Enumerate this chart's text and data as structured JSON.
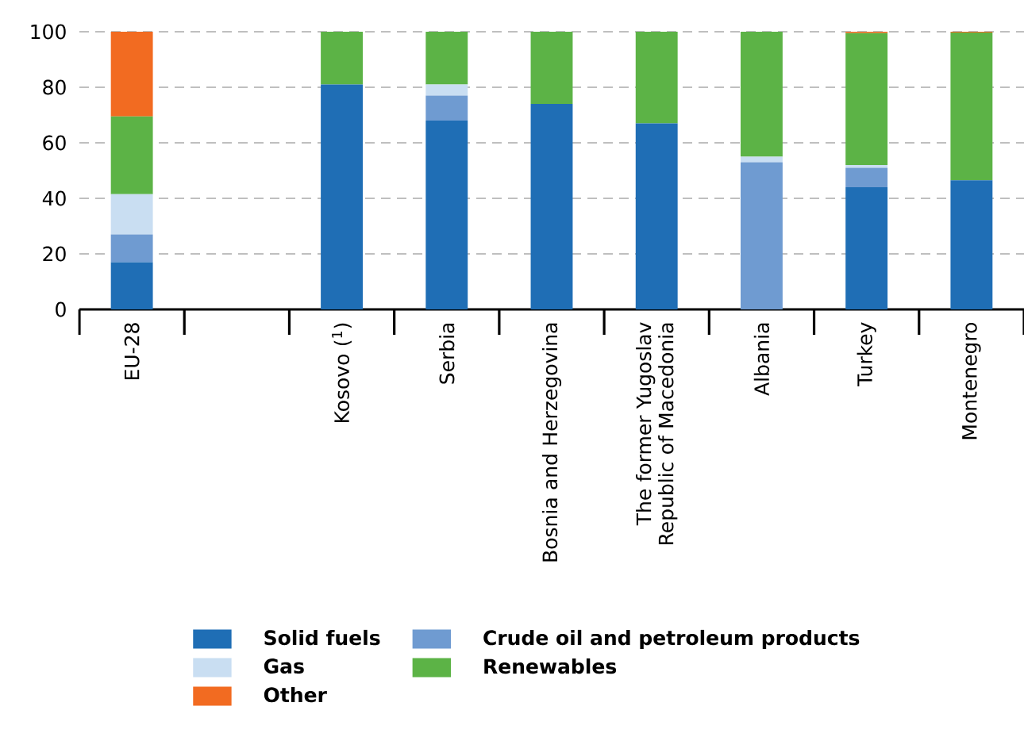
{
  "chart_data": {
    "type": "bar",
    "stacked": true,
    "categories": [
      "EU-28",
      null,
      "Kosovo ($^{1}$)",
      "Serbia",
      "Bosnia and Herzegovina",
      "The former Yugoslav Republic of Macedonia",
      "Albania",
      "Turkey",
      "Montenegro"
    ],
    "series": [
      {
        "name": "Solid fuels",
        "color": "#1f6eb5",
        "values": [
          17,
          null,
          81,
          68,
          74,
          67,
          0,
          44,
          46.5
        ]
      },
      {
        "name": "Crude oil and petroleum products",
        "color": "#6f9bd1",
        "values": [
          10,
          null,
          0,
          9,
          0,
          0,
          53,
          7,
          0
        ]
      },
      {
        "name": "Gas",
        "color": "#c9def2",
        "values": [
          14.5,
          null,
          0,
          4,
          0,
          0,
          2,
          1,
          0
        ]
      },
      {
        "name": "Renewables",
        "color": "#5cb346",
        "values": [
          28,
          null,
          19,
          19,
          26,
          33,
          45,
          47.5,
          53.2
        ]
      },
      {
        "name": "Other",
        "color": "#f26b21",
        "values": [
          30.5,
          null,
          0,
          0,
          0,
          0,
          0,
          0.5,
          0.3
        ]
      }
    ],
    "ylim": [
      0,
      100
    ],
    "yticks": [
      0,
      20,
      40,
      60,
      80,
      100
    ],
    "grid": "y",
    "legend": "bottom"
  }
}
